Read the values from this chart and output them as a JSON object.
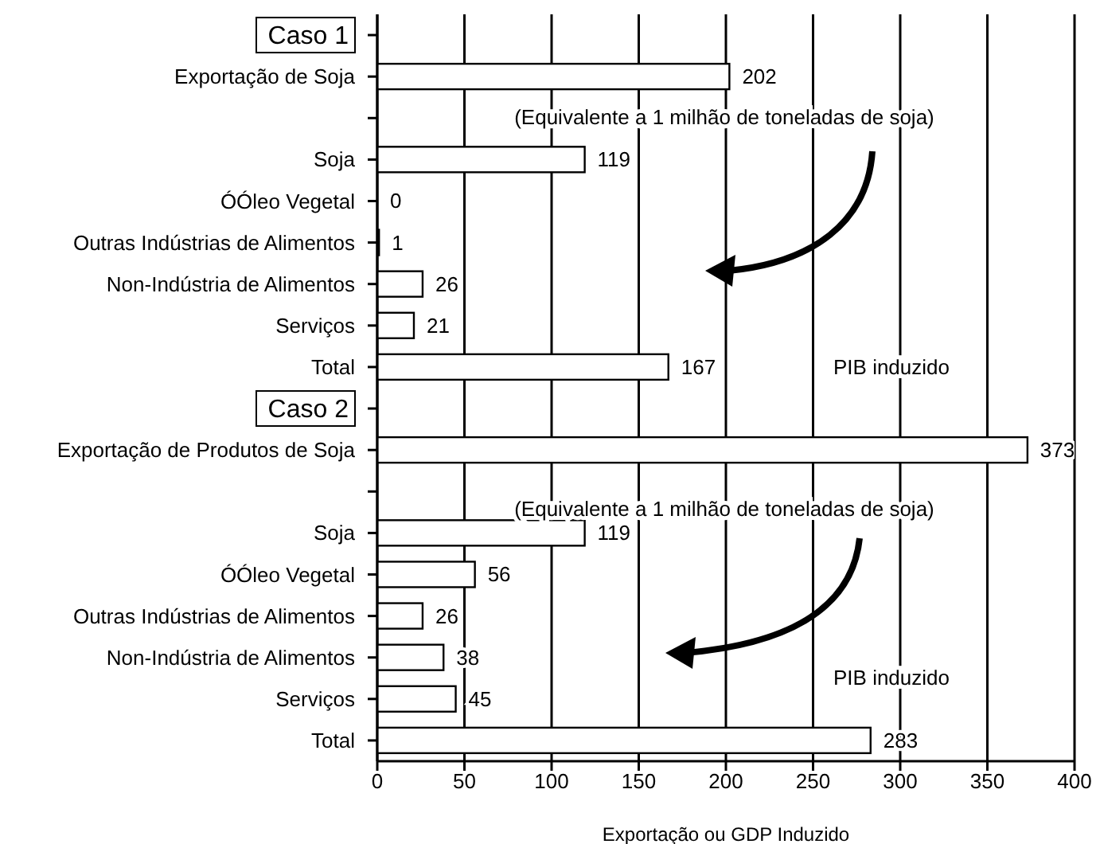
{
  "chart_data": {
    "type": "bar",
    "orientation": "horizontal",
    "xlabel": "Exportação ou GDP Induzido",
    "categories": [
      "Caso 1",
      "Exportação de Soja",
      null,
      "Soja",
      "ÓÓleo Vegetal",
      "Outras Indústrias de Alimentos",
      "Non-Indústria de Alimentos",
      "Serviços",
      "Total",
      "Caso 2",
      "Exportação de Produtos de Soja",
      null,
      "Soja",
      "ÓÓleo Vegetal",
      "Outras Indústrias de Alimentos",
      "Non-Indústria de Alimentos",
      "Serviços",
      "Total"
    ],
    "values": [
      null,
      202,
      null,
      119,
      0,
      1,
      26,
      21,
      167,
      null,
      373,
      null,
      119,
      56,
      26,
      38,
      45,
      283
    ],
    "color": "#ffffff",
    "data_labels": true,
    "grid": "x",
    "xlim": [
      0,
      400
    ],
    "xticks": [
      0,
      50,
      100,
      150,
      200,
      250,
      300,
      350,
      400
    ],
    "annotations": [
      "(Equivalente a 1 milhão de toneladas de soja)",
      "PIB induzido",
      "(Equivalente a 1 milhão de toneladas de soja)",
      "PIB induzido"
    ]
  }
}
